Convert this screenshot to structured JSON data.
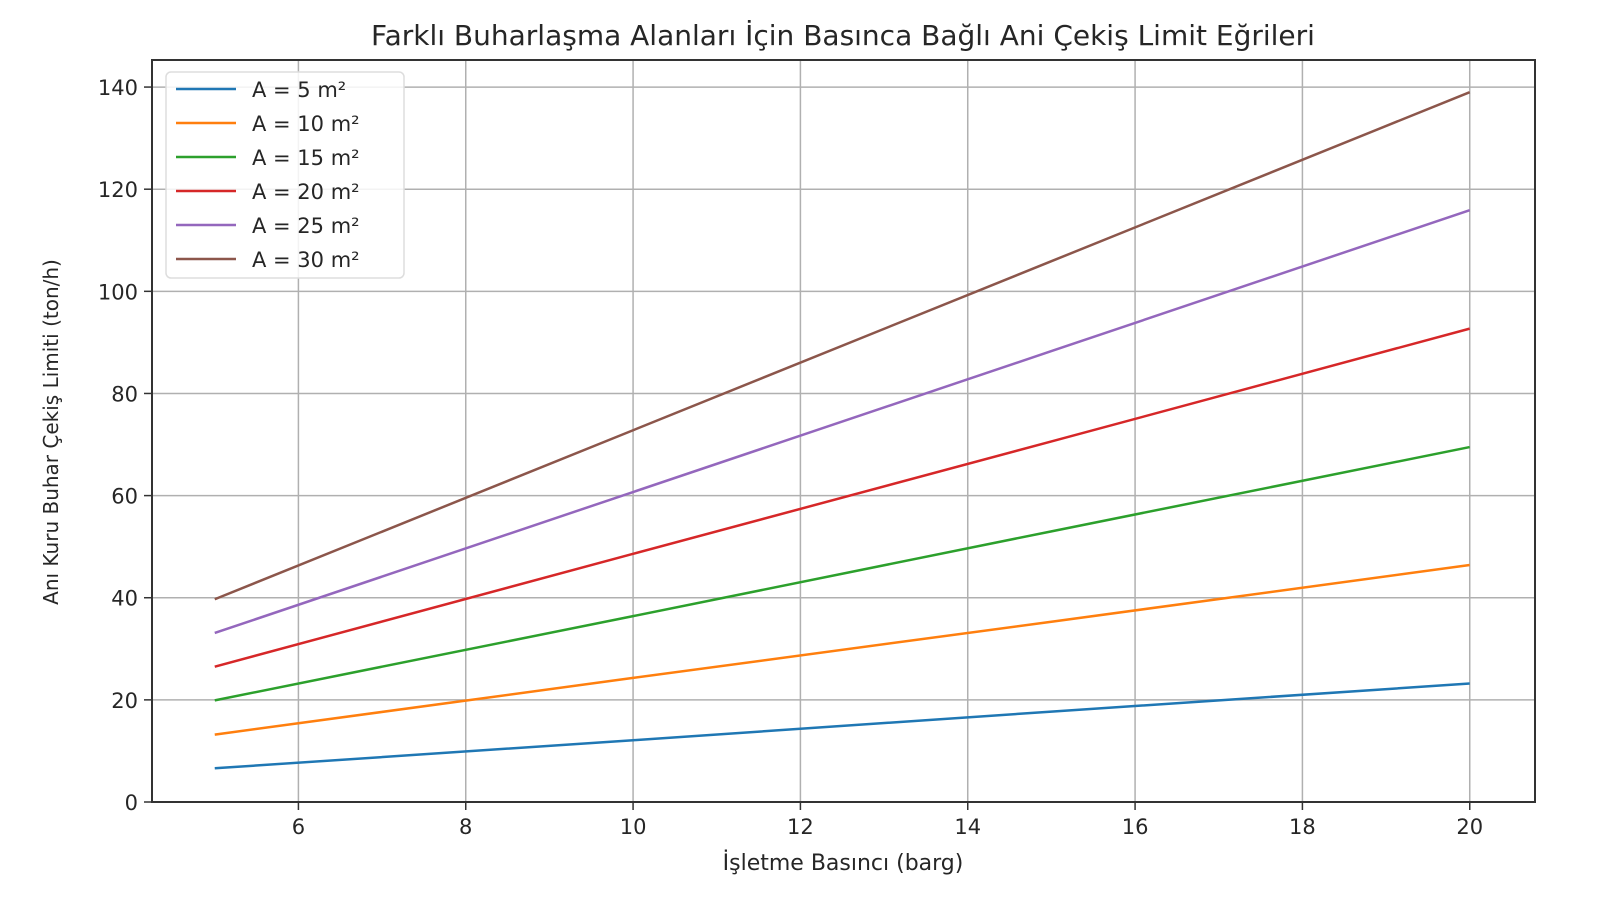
{
  "chart_data": {
    "type": "line",
    "title": "Farklı Buharlaşma Alanları İçin Basınca Bağlı Ani Çekiş Limit Eğrileri",
    "xlabel": "İşletme Basıncı (barg)",
    "ylabel": "Anı Kuru Buhar Çekiş Limiti (ton/h)",
    "xlim": [
      4.25,
      20.78
    ],
    "ylim": [
      0,
      145.3
    ],
    "xticks": [
      6,
      8,
      10,
      12,
      14,
      16,
      18,
      20
    ],
    "yticks": [
      0,
      20,
      40,
      60,
      80,
      100,
      120,
      140
    ],
    "grid": true,
    "legend_position": "top-left",
    "x": [
      5,
      10,
      15,
      20
    ],
    "series": [
      {
        "name": "A = 5 m²",
        "color": "#1f77b4",
        "values": [
          6.6,
          12.1,
          17.7,
          23.2
        ]
      },
      {
        "name": "A = 10 m²",
        "color": "#ff7f0e",
        "values": [
          13.2,
          24.3,
          35.3,
          46.4
        ]
      },
      {
        "name": "A = 15 m²",
        "color": "#2ca02c",
        "values": [
          19.9,
          36.4,
          53.0,
          69.5
        ]
      },
      {
        "name": "A = 20 m²",
        "color": "#d62728",
        "values": [
          26.5,
          48.6,
          70.6,
          92.7
        ]
      },
      {
        "name": "A = 25 m²",
        "color": "#9467bd",
        "values": [
          33.1,
          60.7,
          88.3,
          115.9
        ]
      },
      {
        "name": "A = 30 m²",
        "color": "#8c564b",
        "values": [
          39.7,
          72.8,
          105.9,
          139.0
        ]
      }
    ]
  }
}
